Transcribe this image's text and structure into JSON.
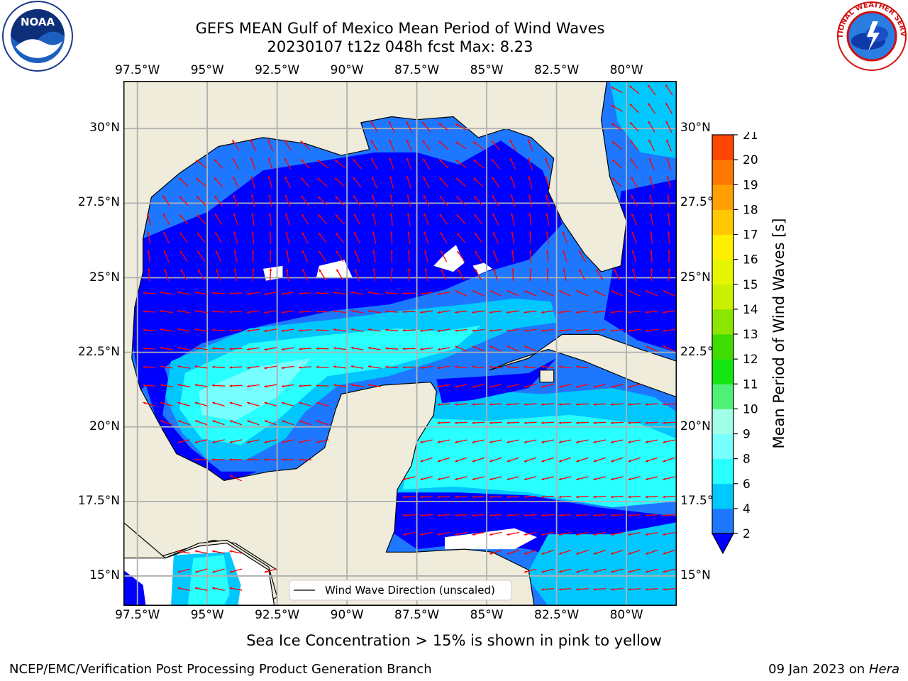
{
  "header": {
    "title_line1": "GEFS MEAN Gulf of Mexico Mean Period of Wind Waves",
    "title_line2": "20230107 t12z 048h fcst   Max: 8.23"
  },
  "logos": {
    "left": {
      "icon": "noaa-logo",
      "text": "NOAA"
    },
    "right": {
      "icon": "national-weather-service-logo",
      "text": "NATIONAL WEATHER SERVICE"
    }
  },
  "map": {
    "lon_labels": [
      "97.5°W",
      "95°W",
      "92.5°W",
      "90°W",
      "87.5°W",
      "85°W",
      "82.5°W",
      "80°W"
    ],
    "lat_labels_left": [
      "30°N",
      "27.5°N",
      "25°N",
      "22.5°N",
      "20°N",
      "17.5°N",
      "15°N"
    ],
    "lat_labels_right": [
      "30°N",
      "27.5°",
      "25°N",
      "22.5°",
      "20°N",
      "17.5°",
      "15°N"
    ],
    "lon_range": [
      -98,
      -78.2
    ],
    "lat_range": [
      14,
      31.6
    ],
    "legend_label": "Wind Wave Direction (unscaled)",
    "land_color": "#efecdc",
    "vector_color": "#ff0000"
  },
  "colorbar": {
    "label": "Mean Period of Wind Waves [s]",
    "tick_labels": [
      "2",
      "4",
      "6",
      "8",
      "9",
      "10",
      "11",
      "12",
      "13",
      "14",
      "15",
      "16",
      "17",
      "18",
      "19",
      "20",
      "21"
    ],
    "level_colors": [
      "#1e78ff",
      "#00c8ff",
      "#28ffff",
      "#78ffff",
      "#a0ffe6",
      "#50f078",
      "#14e614",
      "#40dc00",
      "#8ce600",
      "#c8f000",
      "#e6f500",
      "#fff000",
      "#ffc800",
      "#ffa000",
      "#ff7800",
      "#ff4600",
      "#ff0000"
    ],
    "extend_color": "#0000ff"
  },
  "chart_data": {
    "type": "heatmap",
    "title": "GEFS MEAN Gulf of Mexico Mean Period of Wind Waves",
    "subtitle": "20230107 t12z 048h fcst   Max: 8.23",
    "max_value": 8.23,
    "units": "s",
    "levels": [
      2,
      4,
      6,
      8,
      9,
      10,
      11,
      12,
      13,
      14,
      15,
      16,
      17,
      18,
      19,
      20,
      21
    ],
    "xlabel": "",
    "ylabel": "",
    "grid": true
  },
  "footer": {
    "sea_ice_note": "Sea Ice Concentration > 15% is shown in pink to yellow",
    "credit": "NCEP/EMC/Verification Post Processing Product Generation Branch",
    "date": "09 Jan 2023 on",
    "host": "Hera"
  }
}
